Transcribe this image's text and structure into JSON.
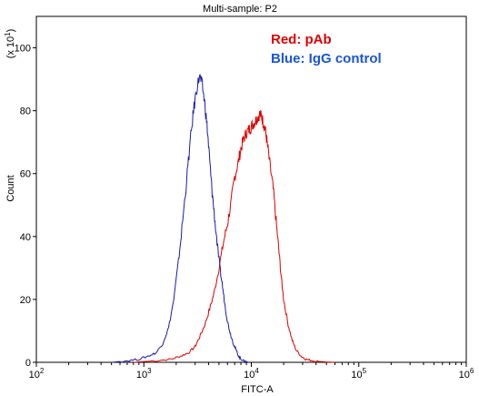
{
  "chart_data": {
    "type": "line",
    "title": "Multi-sample: P2",
    "xlabel": "FITC-A",
    "ylabel": "Count",
    "y_multiplier_label": "(x 10",
    "y_multiplier_exp": "1",
    "y_multiplier_close": ")",
    "x_scale": "log",
    "xlim": [
      100,
      1000000
    ],
    "ylim": [
      0,
      110
    ],
    "x_ticks": [
      {
        "base": "10",
        "exp": "2",
        "value": 100
      },
      {
        "base": "10",
        "exp": "3",
        "value": 1000
      },
      {
        "base": "10",
        "exp": "4",
        "value": 10000
      },
      {
        "base": "10",
        "exp": "5",
        "value": 100000
      },
      {
        "base": "10",
        "exp": "6",
        "value": 1000000
      }
    ],
    "y_ticks": [
      "0",
      "20",
      "40",
      "60",
      "80",
      "100"
    ],
    "legend_placement": "top-right",
    "series": [
      {
        "name": "Red: pAb",
        "color": "#dd0000",
        "x": [
          800,
          1300,
          1800,
          2200,
          2600,
          3000,
          3300,
          3700,
          4100,
          4500,
          5000,
          5500,
          6000,
          6500,
          7000,
          7500,
          8000,
          8500,
          9000,
          9500,
          10000,
          10500,
          11000,
          11500,
          12000,
          12500,
          13000,
          13500,
          14000,
          15000,
          16000,
          17000,
          18000,
          19000,
          20000,
          22000,
          24000,
          26000,
          29000,
          32000,
          36000,
          42000,
          50000,
          60000
        ],
        "y": [
          0,
          0.5,
          1,
          2,
          3,
          5,
          8,
          12,
          17,
          22,
          30,
          38,
          44,
          51,
          59,
          63,
          68,
          71,
          73,
          74,
          75,
          76,
          77,
          78,
          79,
          78,
          76,
          74,
          70,
          62,
          55,
          45,
          36,
          27,
          20,
          12,
          7,
          4,
          2,
          1,
          0.6,
          0.3,
          0.1,
          0
        ]
      },
      {
        "name": "Blue: IgG control",
        "color": "#1a1aaa",
        "x": [
          500,
          700,
          900,
          1100,
          1300,
          1500,
          1700,
          1900,
          2100,
          2300,
          2500,
          2700,
          2900,
          3100,
          3300,
          3500,
          3700,
          3900,
          4100,
          4300,
          4500,
          4800,
          5100,
          5400,
          5700,
          6000,
          6400,
          6800,
          7200,
          7600,
          8000,
          8500,
          9000,
          9500
        ],
        "y": [
          0,
          0.5,
          1,
          2,
          3,
          6,
          11,
          20,
          32,
          45,
          58,
          70,
          80,
          87,
          91,
          88,
          82,
          74,
          64,
          55,
          48,
          38,
          30,
          24,
          18,
          13,
          9,
          6,
          4,
          2,
          1,
          0.5,
          0.2,
          0
        ]
      }
    ]
  }
}
